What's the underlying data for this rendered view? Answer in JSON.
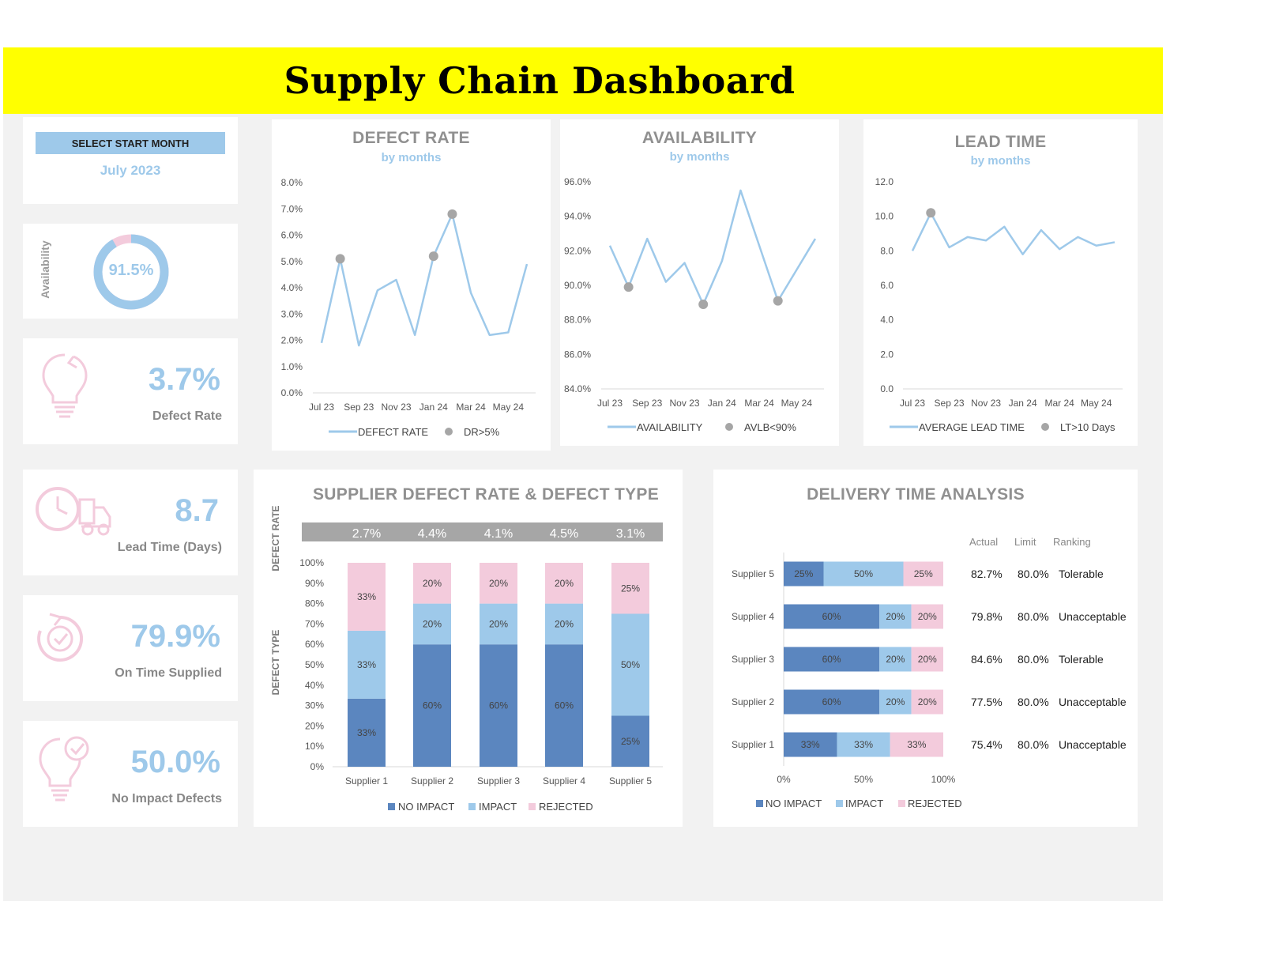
{
  "title": "Supply Chain Dashboard",
  "month_selector": {
    "label": "SELECT START MONTH",
    "value": "July 2023"
  },
  "availability_kpi": {
    "label": "Availability",
    "value": "91.5%",
    "fraction": 0.915
  },
  "kpis": [
    {
      "value": "3.7%",
      "label": "Defect Rate",
      "icon": "lightbulb-icon"
    },
    {
      "value": "8.7",
      "label": "Lead Time (Days)",
      "icon": "clock-truck-icon"
    },
    {
      "value": "79.9%",
      "label": "On Time Supplied",
      "icon": "ontime-check-icon"
    },
    {
      "value": "50.0%",
      "label": "No Impact Defects",
      "icon": "lightbulb-check-icon"
    }
  ],
  "colors": {
    "line": "#9ec9ea",
    "marker": "#a6a6a6",
    "no_impact": "#5b86bf",
    "impact": "#9ec9ea",
    "rejected": "#f3cbdc",
    "accent": "#ffff00"
  },
  "chart_data": [
    {
      "id": "defect-rate",
      "type": "line",
      "title": "DEFECT RATE",
      "subtitle": "by months",
      "x": [
        "Jul 23",
        "Aug 23",
        "Sep 23",
        "Oct 23",
        "Nov 23",
        "Dec 23",
        "Jan 24",
        "Feb 24",
        "Mar 24",
        "Apr 24",
        "May 24",
        "Jun 24"
      ],
      "tick_labels": [
        "Jul 23",
        "Sep 23",
        "Nov 23",
        "Jan 24",
        "Mar 24",
        "May 24"
      ],
      "y_ticks": [
        "0.0%",
        "1.0%",
        "2.0%",
        "3.0%",
        "4.0%",
        "5.0%",
        "6.0%",
        "7.0%",
        "8.0%"
      ],
      "ylim": [
        0,
        8
      ],
      "series": [
        {
          "name": "DEFECT RATE",
          "values": [
            1.9,
            5.1,
            1.8,
            3.9,
            4.3,
            2.2,
            5.2,
            6.8,
            3.8,
            2.2,
            2.3,
            4.9
          ]
        }
      ],
      "markers": {
        "name": "DR>5%",
        "indices": [
          1,
          6,
          7
        ]
      }
    },
    {
      "id": "availability",
      "type": "line",
      "title": "AVAILABILITY",
      "subtitle": "by months",
      "x": [
        "Jul 23",
        "Aug 23",
        "Sep 23",
        "Oct 23",
        "Nov 23",
        "Dec 23",
        "Jan 24",
        "Feb 24",
        "Mar 24",
        "Apr 24",
        "May 24",
        "Jun 24"
      ],
      "tick_labels": [
        "Jul 23",
        "Sep 23",
        "Nov 23",
        "Jan 24",
        "Mar 24",
        "May 24"
      ],
      "y_ticks": [
        "84.0%",
        "86.0%",
        "88.0%",
        "90.0%",
        "92.0%",
        "94.0%",
        "96.0%"
      ],
      "ylim": [
        84,
        96
      ],
      "series": [
        {
          "name": "AVAILABILITY",
          "values": [
            92.3,
            89.9,
            92.7,
            90.2,
            91.3,
            88.9,
            91.4,
            95.5,
            92.3,
            89.1,
            90.9,
            92.7
          ]
        }
      ],
      "markers": {
        "name": "AVLB<90%",
        "indices": [
          1,
          5,
          9
        ]
      }
    },
    {
      "id": "lead-time",
      "type": "line",
      "title": "LEAD TIME",
      "subtitle": "by months",
      "x": [
        "Jul 23",
        "Aug 23",
        "Sep 23",
        "Oct 23",
        "Nov 23",
        "Dec 23",
        "Jan 24",
        "Feb 24",
        "Mar 24",
        "Apr 24",
        "May 24",
        "Jun 24"
      ],
      "tick_labels": [
        "Jul 23",
        "Sep 23",
        "Nov 23",
        "Jan 24",
        "Mar 24",
        "May 24"
      ],
      "y_ticks": [
        "0.0",
        "2.0",
        "4.0",
        "6.0",
        "8.0",
        "10.0",
        "12.0"
      ],
      "ylim": [
        0,
        12
      ],
      "series": [
        {
          "name": "AVERAGE LEAD TIME",
          "values": [
            8.0,
            10.2,
            8.2,
            8.8,
            8.6,
            9.4,
            7.8,
            9.2,
            8.1,
            8.8,
            8.3,
            8.5
          ]
        }
      ],
      "markers": {
        "name": "LT>10 Days",
        "indices": [
          1
        ]
      }
    },
    {
      "id": "supplier-defect",
      "type": "bar",
      "title": "SUPPLIER DEFECT RATE & DEFECT TYPE",
      "row_label_top": "DEFECT RATE",
      "row_label_bottom": "DEFECT TYPE",
      "categories": [
        "Supplier 1",
        "Supplier 2",
        "Supplier 3",
        "Supplier 4",
        "Supplier 5"
      ],
      "defect_rates": [
        "2.7%",
        "4.4%",
        "4.1%",
        "4.5%",
        "3.1%"
      ],
      "y_ticks": [
        "0%",
        "10%",
        "20%",
        "30%",
        "40%",
        "50%",
        "60%",
        "70%",
        "80%",
        "90%",
        "100%"
      ],
      "ylim": [
        0,
        100
      ],
      "series": [
        {
          "name": "NO IMPACT",
          "values": [
            33.4,
            60,
            60,
            60,
            25
          ],
          "labels": [
            "33%",
            "60%",
            "60%",
            "60%",
            "25%"
          ]
        },
        {
          "name": "IMPACT",
          "values": [
            33.3,
            20,
            20,
            20,
            50
          ],
          "labels": [
            "33%",
            "20%",
            "20%",
            "20%",
            "50%"
          ]
        },
        {
          "name": "REJECTED",
          "values": [
            33.3,
            20,
            20,
            20,
            25
          ],
          "labels": [
            "33%",
            "20%",
            "20%",
            "20%",
            "25%"
          ]
        }
      ]
    },
    {
      "id": "delivery-time",
      "type": "bar",
      "title": "DELIVERY TIME ANALYSIS",
      "categories": [
        "Supplier 5",
        "Supplier 4",
        "Supplier 3",
        "Supplier 2",
        "Supplier 1"
      ],
      "x_ticks": [
        "0%",
        "50%",
        "100%"
      ],
      "xlim": [
        0,
        100
      ],
      "series": [
        {
          "name": "NO IMPACT",
          "values": [
            25,
            60,
            60,
            60,
            33.4
          ],
          "labels": [
            "25%",
            "60%",
            "60%",
            "60%",
            "33%"
          ]
        },
        {
          "name": "IMPACT",
          "values": [
            50,
            20,
            20,
            20,
            33.3
          ],
          "labels": [
            "50%",
            "20%",
            "20%",
            "20%",
            "33%"
          ]
        },
        {
          "name": "REJECTED",
          "values": [
            25,
            20,
            20,
            20,
            33.3
          ],
          "labels": [
            "25%",
            "20%",
            "20%",
            "20%",
            "33%"
          ]
        }
      ],
      "table": {
        "headers": [
          "Actual",
          "Limit",
          "Ranking"
        ],
        "rows": [
          [
            "82.7%",
            "80.0%",
            "Tolerable"
          ],
          [
            "79.8%",
            "80.0%",
            "Unacceptable"
          ],
          [
            "84.6%",
            "80.0%",
            "Tolerable"
          ],
          [
            "77.5%",
            "80.0%",
            "Unacceptable"
          ],
          [
            "75.4%",
            "80.0%",
            "Unacceptable"
          ]
        ]
      }
    }
  ]
}
